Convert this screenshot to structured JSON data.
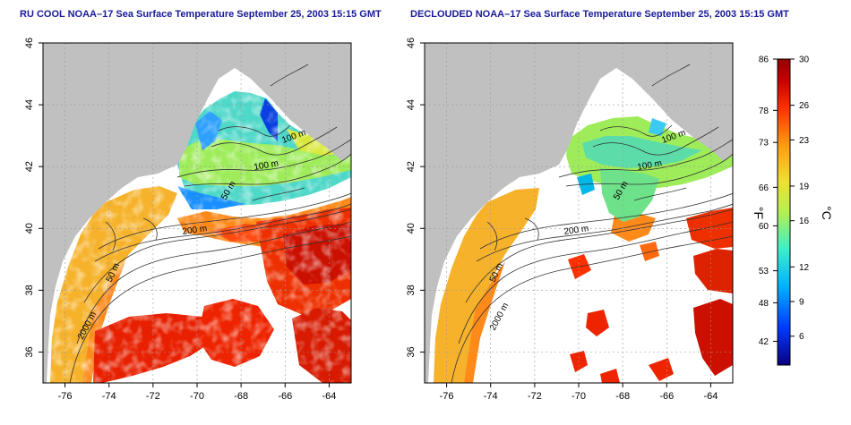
{
  "panels": [
    {
      "title": "RU COOL NOAA–17 Sea Surface Temperature September 25, 2003 15:15 GMT"
    },
    {
      "title": "DECLOUDED NOAA–17 Sea Surface Temperature September 25, 2003 15:15 GMT"
    }
  ],
  "map": {
    "lon_range": [
      -77,
      -63
    ],
    "lat_range": [
      35,
      46
    ],
    "x_ticks": [
      "-76",
      "-74",
      "-72",
      "-70",
      "-68",
      "-66",
      "-64"
    ],
    "y_ticks": [
      "36",
      "38",
      "40",
      "42",
      "44",
      "46"
    ],
    "contour_labels": [
      "100 m",
      "100 m",
      "50 m",
      "200 m",
      "50 m",
      "2000 m"
    ],
    "land_color": "#c0c0c0",
    "cloud_color": "#ffffff",
    "grid": true
  },
  "colorbar": {
    "fahrenheit_ticks": [
      "86",
      "78",
      "73",
      "66",
      "60",
      "53",
      "48",
      "42"
    ],
    "celsius_ticks": [
      "30",
      "26",
      "23",
      "19",
      "16",
      "12",
      "9",
      "6"
    ],
    "fahrenheit_label": "°F",
    "celsius_label": "°C",
    "colors": [
      "#0a0080",
      "#0038ff",
      "#00b4ff",
      "#3cf0c8",
      "#b4f050",
      "#f0e030",
      "#ff9a10",
      "#ff3000",
      "#c80000",
      "#960000"
    ]
  }
}
